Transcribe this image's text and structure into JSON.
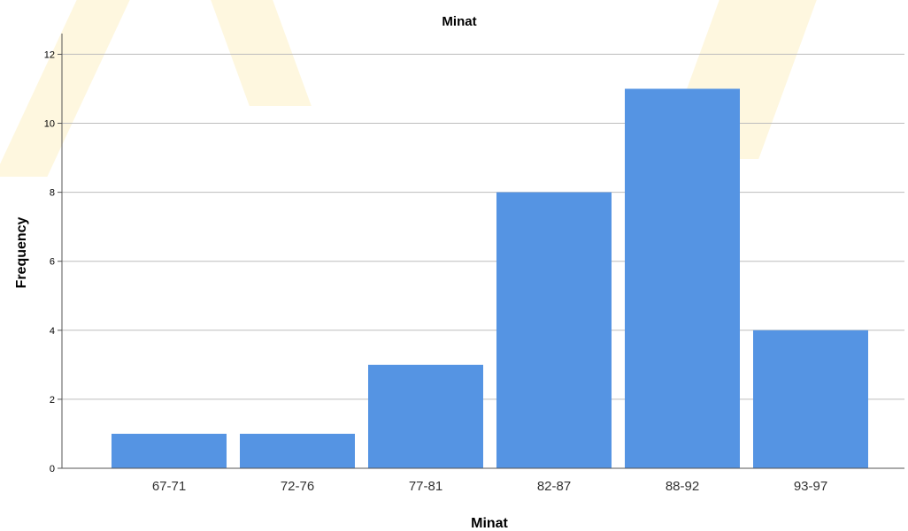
{
  "chart_data": {
    "type": "bar",
    "title": "Minat",
    "xlabel": "Minat",
    "ylabel": "Frequency",
    "categories": [
      "67-71",
      "72-76",
      "77-81",
      "82-87",
      "88-92",
      "93-97"
    ],
    "values": [
      1,
      1,
      3,
      8,
      11,
      4
    ],
    "ylim": [
      0,
      12.6
    ],
    "yticks": [
      0,
      2,
      4,
      6,
      8,
      10,
      12
    ],
    "grid": true,
    "bar_color": "#5594e3",
    "grid_color": "#bdbdbd",
    "axis_color": "#555555"
  }
}
